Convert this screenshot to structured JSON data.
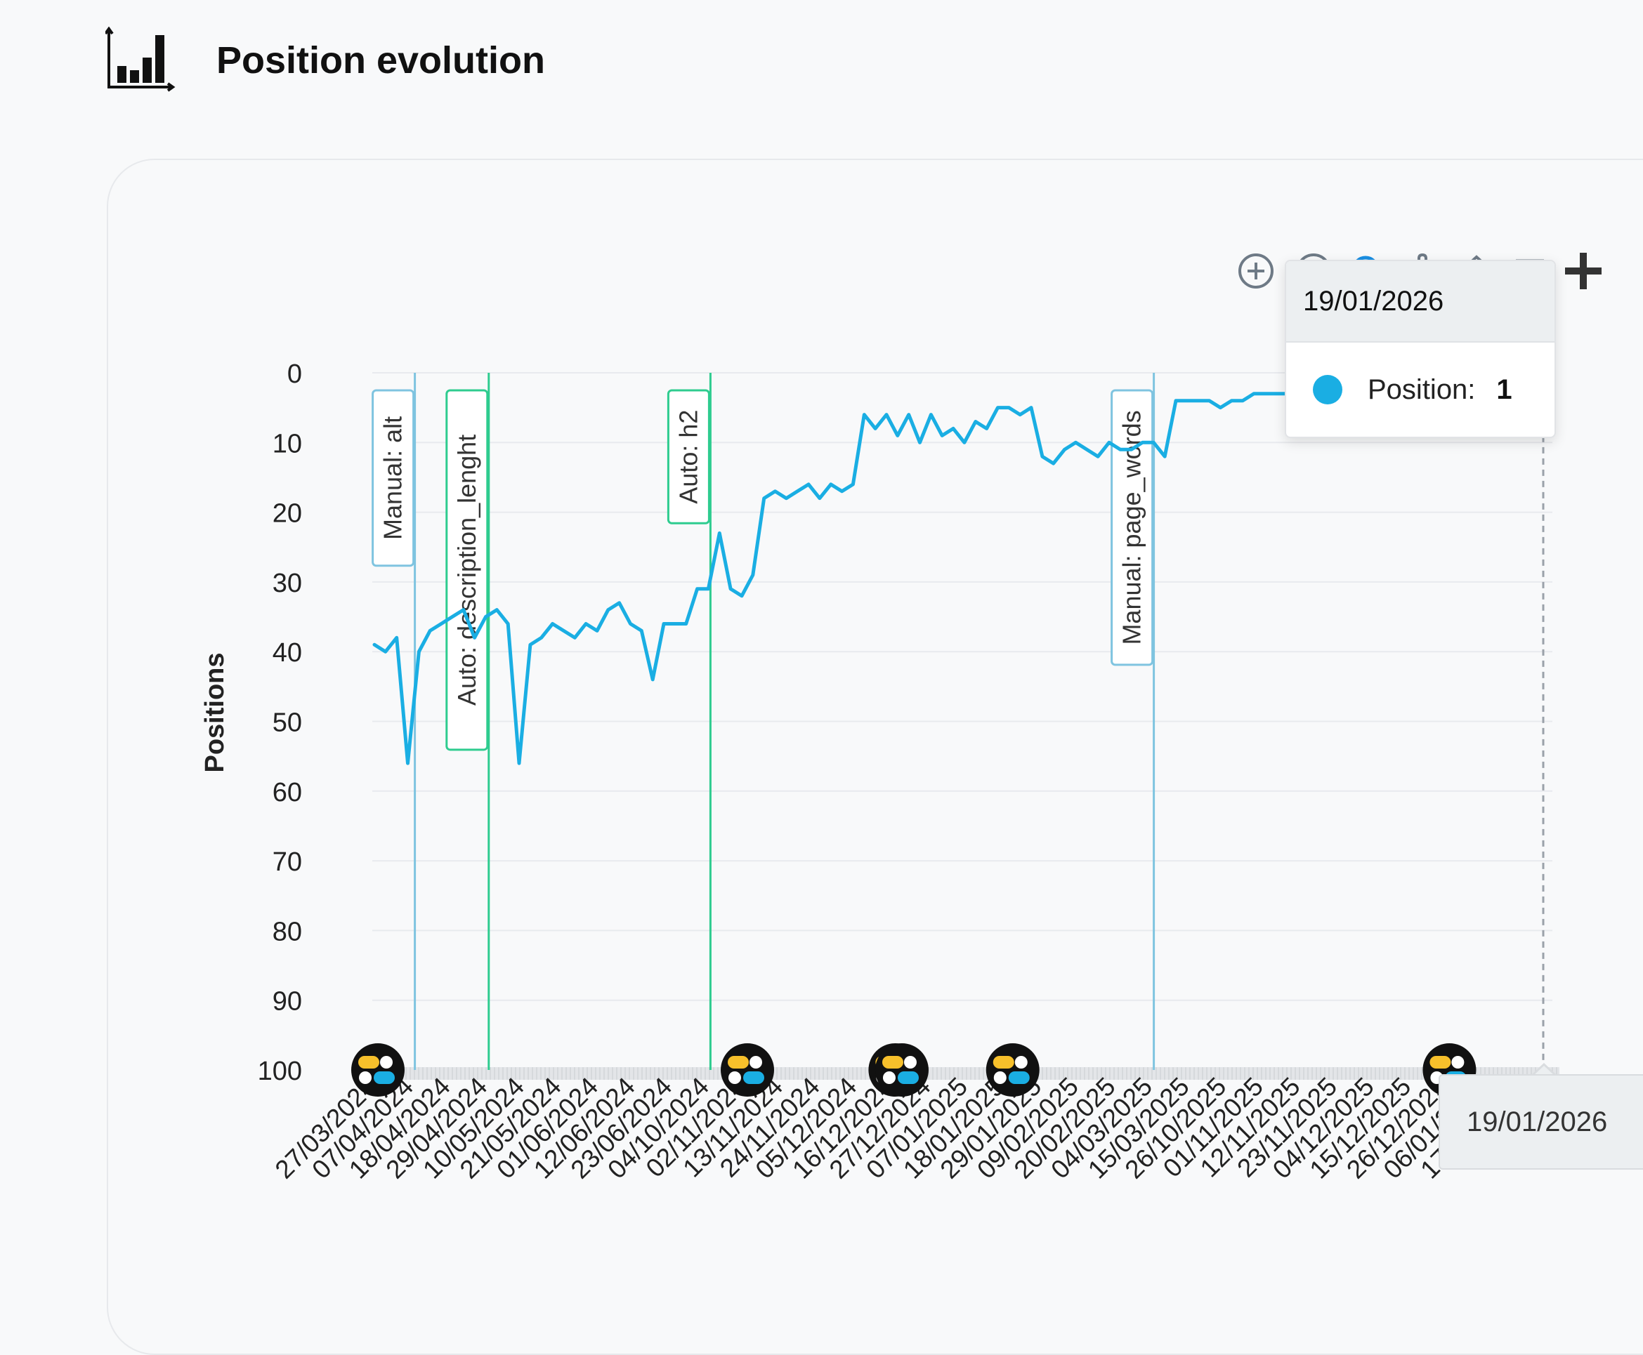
{
  "header": {
    "title": "Position evolution",
    "icon": "bar-chart-icon"
  },
  "toolbar": {
    "icons": [
      "zoom-in-icon",
      "zoom-out-icon",
      "selection-zoom-icon",
      "pan-icon",
      "home-icon",
      "menu-icon",
      "add-icon"
    ]
  },
  "tooltip": {
    "date": "19/01/2026",
    "series_name": "Position:",
    "value": "1",
    "color": "#1aaee3"
  },
  "crosshair": {
    "x_label": "19/01/2026"
  },
  "colors": {
    "line": "#1aaee3",
    "manual_annotation": "#7fc4e0",
    "auto_annotation": "#2ecc8f",
    "grid": "#e8eaee",
    "axis_text": "#222"
  },
  "chart_data": {
    "type": "line",
    "title": "",
    "xlabel": "",
    "ylabel": "Positions",
    "ylim": [
      0,
      100
    ],
    "y_reversed": true,
    "y_ticks": [
      0,
      10,
      20,
      30,
      40,
      50,
      60,
      70,
      80,
      90,
      100
    ],
    "x_tick_labels": [
      "27/03/2024",
      "07/04/2024",
      "18/04/2024",
      "29/04/2024",
      "10/05/2024",
      "21/05/2024",
      "01/06/2024",
      "12/06/2024",
      "23/06/2024",
      "04/10/2024",
      "02/11/2024",
      "13/11/2024",
      "24/11/2024",
      "05/12/2024",
      "16/12/2024",
      "27/12/2024",
      "07/01/2025",
      "18/01/2025",
      "29/01/2025",
      "09/02/2025",
      "20/02/2025",
      "04/03/2025",
      "15/03/2025",
      "26/10/2025",
      "01/11/2025",
      "12/11/2025",
      "23/11/2025",
      "04/12/2025",
      "15/12/2025",
      "26/12/2025",
      "06/01/2026",
      "17/01/2026"
    ],
    "grid": true,
    "legend": "none",
    "series": [
      {
        "values": [
          39,
          40,
          38,
          56,
          40,
          37,
          36,
          35,
          34,
          38,
          35,
          34,
          36,
          56,
          39,
          38,
          36,
          37,
          38,
          36,
          37,
          34,
          33,
          36,
          37,
          44,
          36,
          36,
          36,
          31,
          31,
          23,
          31,
          32,
          29,
          18,
          17,
          18,
          17,
          16,
          18,
          16,
          17,
          16,
          6,
          8,
          6,
          9,
          6,
          10,
          6,
          9,
          8,
          10,
          7,
          8,
          5,
          5,
          6,
          5,
          12,
          13,
          11,
          10,
          11,
          12,
          10,
          11,
          11,
          10,
          10,
          12,
          4,
          4,
          4,
          4,
          5,
          4,
          4,
          3,
          3,
          3,
          3,
          3,
          2,
          2,
          3,
          4,
          3,
          3,
          2,
          3,
          4,
          3,
          3,
          3,
          2,
          2,
          2,
          1,
          1,
          1,
          1,
          1,
          1,
          1
        ]
      }
    ],
    "annotations": [
      {
        "label": "Manual: alt",
        "type": "manual",
        "date": "07/04/2024"
      },
      {
        "label": "Auto: description_lenght",
        "type": "auto",
        "date": "29/04/2024"
      },
      {
        "label": "Auto: h2",
        "type": "auto",
        "date": "04/10/2024"
      },
      {
        "label": "Manual: page_words",
        "type": "manual",
        "date": "04/03/2025"
      }
    ],
    "events": [
      {
        "date": "27/03/2024",
        "icon": "google-update-icon"
      },
      {
        "date": "02/11/2024",
        "icon": "google-update-icon"
      },
      {
        "date": "16/12/2024",
        "icon": "google-update-icon"
      },
      {
        "date": "18/12/2024",
        "icon": "google-update-icon"
      },
      {
        "date": "20/01/2025",
        "icon": "google-update-icon"
      },
      {
        "date": "26/12/2025",
        "icon": "google-update-icon"
      }
    ]
  }
}
